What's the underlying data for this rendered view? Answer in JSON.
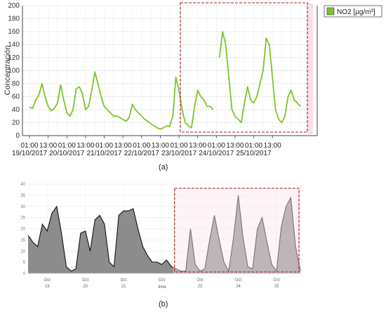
{
  "panels": {
    "a_label": "(a)",
    "b_label": "(b)"
  },
  "chart_data": [
    {
      "type": "line",
      "ylabel": "Concentración",
      "ylim": [
        0,
        200
      ],
      "yticks": [
        0,
        20,
        40,
        60,
        80,
        100,
        120,
        140,
        160,
        180,
        200
      ],
      "xtick_labels": [
        {
          "time": "01:00",
          "date": "19/10/2017"
        },
        {
          "time": "13:00",
          "date": ""
        },
        {
          "time": "01:00",
          "date": "20/10/2017"
        },
        {
          "time": "13:00",
          "date": ""
        },
        {
          "time": "01:00",
          "date": "21/10/2017"
        },
        {
          "time": "13:00",
          "date": ""
        },
        {
          "time": "01:00",
          "date": "22/10/2017"
        },
        {
          "time": "13:00",
          "date": ""
        },
        {
          "time": "01:00",
          "date": "23/10/2017"
        },
        {
          "time": "13:00",
          "date": ""
        },
        {
          "time": "01:00",
          "date": "24/10/2017"
        },
        {
          "time": "13:00",
          "date": ""
        },
        {
          "time": "01:00",
          "date": "25/10/2017"
        },
        {
          "time": "13:00",
          "date": ""
        }
      ],
      "legend": "top-right",
      "grid": true,
      "series": [
        {
          "name": "NO2 [µg/m³]",
          "color": "#7dc42a",
          "x_hours": [
            0,
            2,
            4,
            6,
            8,
            10,
            12,
            14,
            16,
            18,
            20,
            22,
            24,
            26,
            28,
            30,
            32,
            34,
            36,
            38,
            40,
            42,
            44,
            46,
            48,
            50,
            52,
            54,
            56,
            58,
            60,
            62,
            64,
            66,
            68,
            70,
            72,
            74,
            76,
            78,
            80,
            82,
            84,
            86,
            88,
            90,
            92,
            94,
            96,
            98,
            100,
            102,
            104,
            106,
            108,
            110,
            112,
            114,
            116,
            118,
            120,
            122,
            124,
            126,
            128,
            130,
            132,
            134,
            136,
            138,
            140,
            142,
            144,
            146,
            148,
            150,
            152,
            154,
            156,
            158,
            160,
            162,
            164,
            166,
            168,
            170,
            172,
            174,
            176,
            178
          ],
          "values": [
            44,
            42,
            55,
            62,
            80,
            60,
            45,
            38,
            42,
            50,
            78,
            55,
            35,
            30,
            40,
            72,
            75,
            65,
            40,
            45,
            70,
            98,
            80,
            60,
            45,
            40,
            35,
            30,
            30,
            28,
            25,
            22,
            28,
            48,
            40,
            35,
            30,
            25,
            22,
            18,
            15,
            12,
            10,
            12,
            15,
            14,
            30,
            90,
            70,
            40,
            20,
            15,
            12,
            45,
            70,
            60,
            55,
            45,
            45,
            40,
            null,
            120,
            160,
            140,
            90,
            40,
            30,
            25,
            20,
            50,
            75,
            55,
            50,
            60,
            80,
            100,
            150,
            140,
            90,
            40,
            25,
            20,
            30,
            60,
            70,
            55,
            50,
            45,
            null,
            null
          ]
        }
      ],
      "annotation": "dashed highlight box from 23/10/2017 to end"
    },
    {
      "type": "area",
      "xlabel": "time",
      "ylim": [
        0,
        40
      ],
      "yticks": [
        0,
        5,
        10,
        15,
        20,
        25,
        30,
        35,
        40
      ],
      "xtick_labels": [
        {
          "month": "Oct",
          "day": "19"
        },
        {
          "month": "Oct",
          "day": "20"
        },
        {
          "month": "Oct",
          "day": "21"
        },
        {
          "month": "Oct",
          "day": ""
        },
        {
          "month": "Oct",
          "day": "23"
        },
        {
          "month": "Oct",
          "day": "24"
        },
        {
          "month": "Oct",
          "day": "25"
        }
      ],
      "grid": true,
      "series": [
        {
          "color": "#8c8c8c",
          "x_hours": [
            0,
            3,
            6,
            9,
            12,
            15,
            18,
            21,
            24,
            27,
            30,
            33,
            36,
            39,
            42,
            45,
            48,
            51,
            54,
            57,
            60,
            63,
            66,
            69,
            72,
            75,
            78,
            81,
            84,
            87,
            90,
            93,
            96,
            99,
            102,
            105,
            108,
            111,
            114,
            117,
            120,
            123,
            126,
            129,
            132,
            135,
            138,
            141,
            144,
            147,
            150,
            153,
            156,
            159,
            162,
            165,
            168,
            171
          ],
          "values": [
            17,
            14,
            12,
            22,
            19,
            27,
            30,
            18,
            3,
            1,
            2,
            18,
            19,
            10,
            24,
            26,
            22,
            5,
            3,
            26,
            28,
            28,
            29,
            20,
            12,
            8,
            5,
            5,
            4,
            6,
            3,
            2,
            1,
            1,
            20,
            4,
            1,
            2,
            15,
            26,
            15,
            5,
            1,
            16,
            35,
            16,
            3,
            2,
            20,
            25,
            14,
            4,
            1,
            21,
            30,
            34,
            12,
            1
          ]
        }
      ],
      "annotation": "dashed highlight box from 23 Oct to end"
    }
  ]
}
